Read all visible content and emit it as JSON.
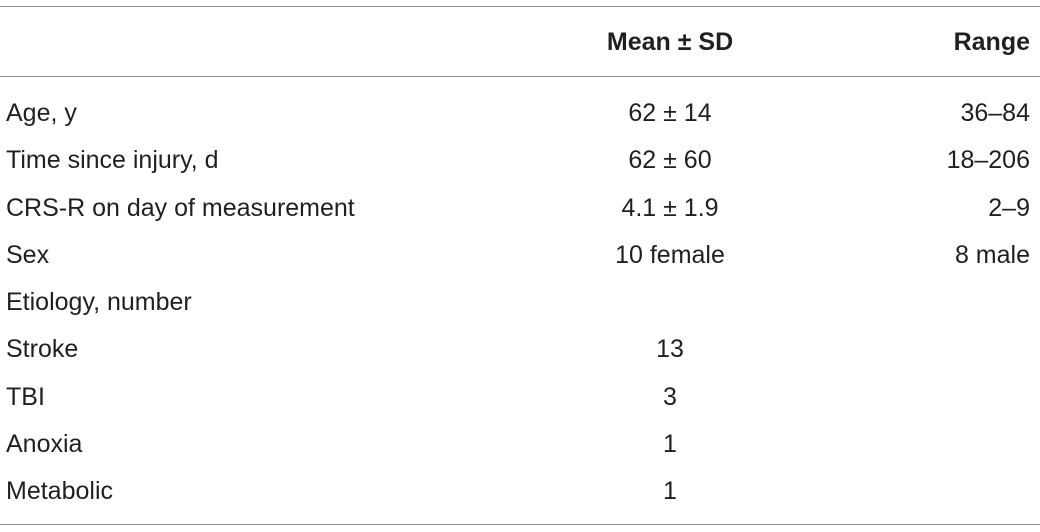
{
  "table": {
    "columns": [
      "Mean ± SD",
      "Range"
    ],
    "rows": [
      [
        "Age, y",
        "62 ± 14",
        "36–84"
      ],
      [
        "Time since injury, d",
        "62 ± 60",
        "18–206"
      ],
      [
        "CRS-R on day of measurement",
        "4.1 ± 1.9",
        "2–9"
      ],
      [
        "Sex",
        "10 female",
        "8 male"
      ],
      [
        "Etiology, number"
      ],
      [
        "Stroke",
        "13"
      ],
      [
        "TBI",
        "3"
      ],
      [
        "Anoxia",
        "1"
      ],
      [
        "Metabolic",
        "1"
      ]
    ]
  }
}
